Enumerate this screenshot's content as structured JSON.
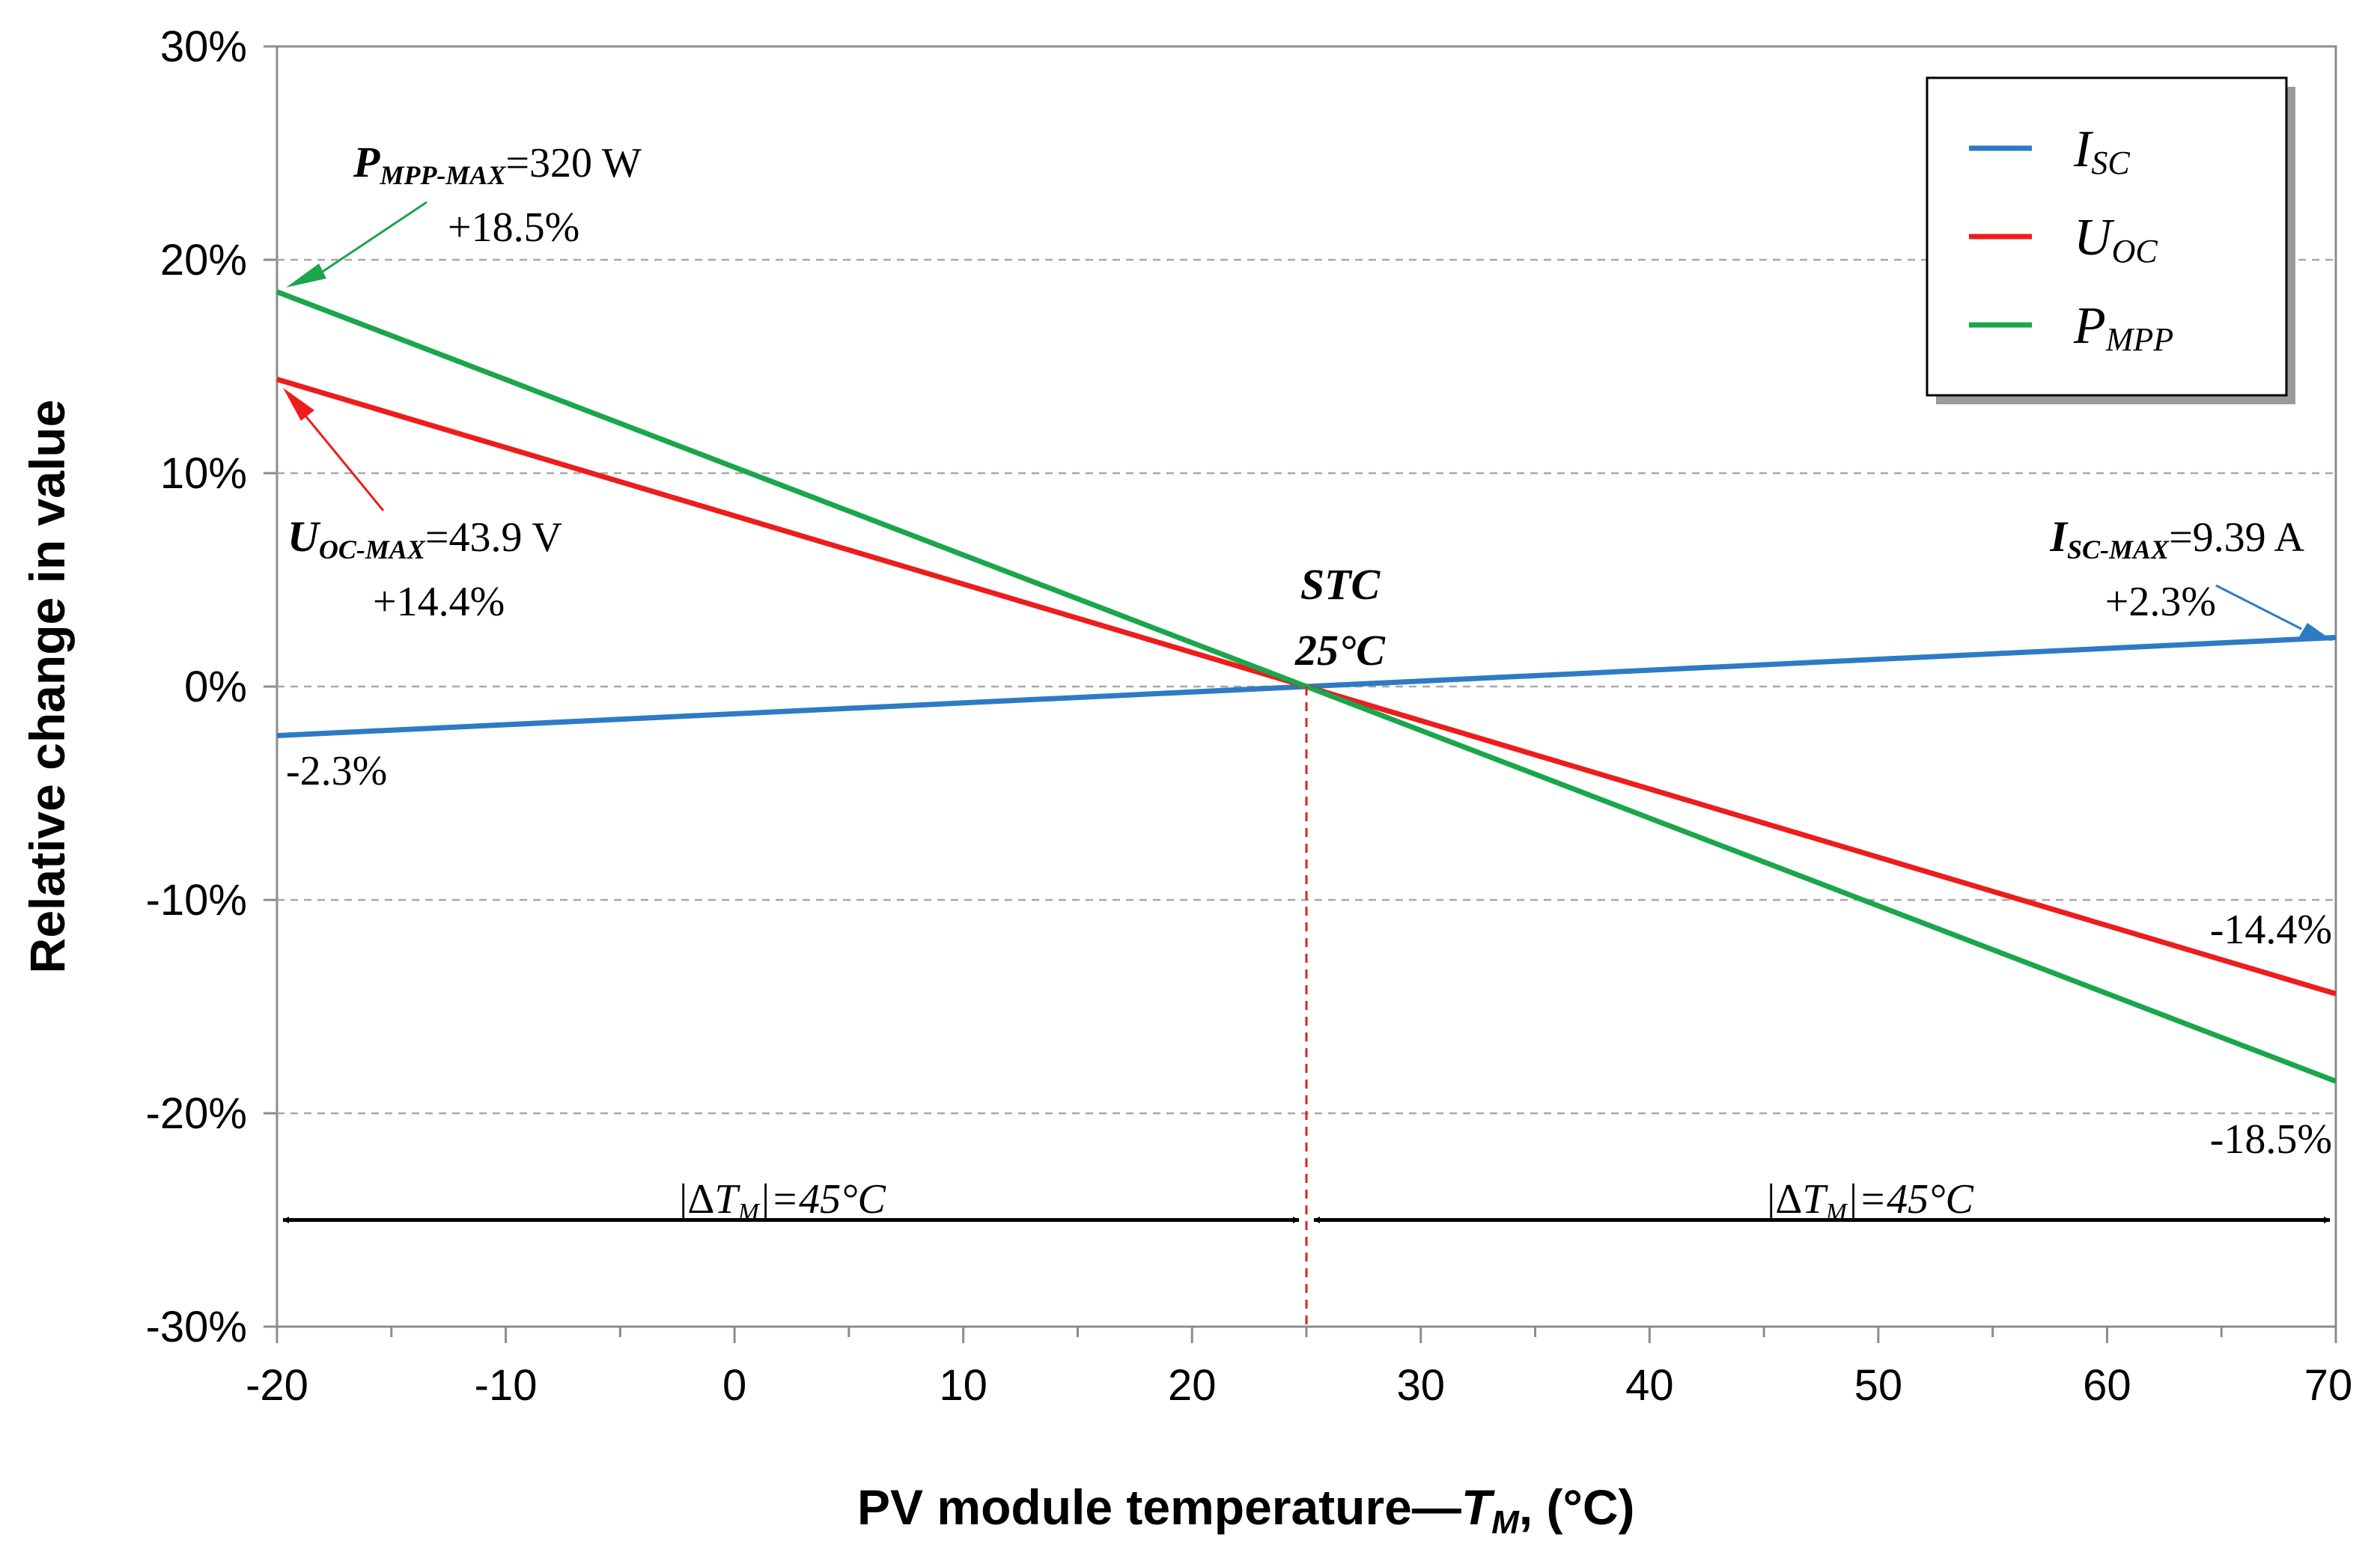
{
  "chart_data": {
    "type": "line",
    "xlabel": "PV module temperature—",
    "xlabel_var": "T",
    "xlabel_sub": "M",
    "xlabel_unit": ", (°C)",
    "ylabel": "Relative change in value",
    "xlim": [
      -20,
      70
    ],
    "ylim": [
      -30,
      30
    ],
    "x_ticks": [
      -20,
      -10,
      0,
      10,
      20,
      30,
      40,
      50,
      60,
      70
    ],
    "x_tick_labels": [
      "-20",
      "-10",
      "0",
      "10",
      "20",
      "30",
      "40",
      "50",
      "60",
      "70"
    ],
    "y_ticks": [
      30,
      20,
      10,
      0,
      -10,
      -20,
      -30
    ],
    "y_tick_labels": [
      "30%",
      "20%",
      "10%",
      "0%",
      "-10%",
      "-20%",
      "-30%"
    ],
    "grid": "horizontal dashed",
    "series": [
      {
        "name": "I",
        "sub": "SC",
        "color": "#2e7bc4",
        "x": [
          -20,
          25,
          70
        ],
        "y": [
          -2.3,
          0,
          2.3
        ]
      },
      {
        "name": "U",
        "sub": "OC",
        "color": "#ee1c1c",
        "x": [
          -20,
          25,
          70
        ],
        "y": [
          14.4,
          0,
          -14.4
        ]
      },
      {
        "name": "P",
        "sub": "MPP",
        "color": "#1aa64a",
        "x": [
          -20,
          25,
          70
        ],
        "y": [
          18.5,
          0,
          -18.5
        ]
      }
    ],
    "legend_position": "top-right",
    "stc_marker": {
      "x": 25,
      "line1": "STC",
      "line2": "25°C"
    },
    "annotations": {
      "pmpp_max": {
        "var": "P",
        "sub": "MPP-MAX",
        "value": "=320 W",
        "pct": "+18.5%"
      },
      "uoc_max": {
        "var": "U",
        "sub": "OC-MAX",
        "value": "=43.9 V",
        "pct": "+14.4%"
      },
      "isc_max": {
        "var": "I",
        "sub": "SC-MAX",
        "value": "=9.39 A",
        "pct": "+2.3%"
      },
      "isc_min_pct": "-2.3%",
      "uoc_min_pct": "-14.4%",
      "pmpp_min_pct": "-18.5%",
      "delta_left": {
        "pre": "|Δ",
        "var": "T",
        "sub": "M",
        "post": "|=45°C"
      },
      "delta_right": {
        "pre": "|Δ",
        "var": "T",
        "sub": "M",
        "post": "|=45°C"
      }
    }
  }
}
